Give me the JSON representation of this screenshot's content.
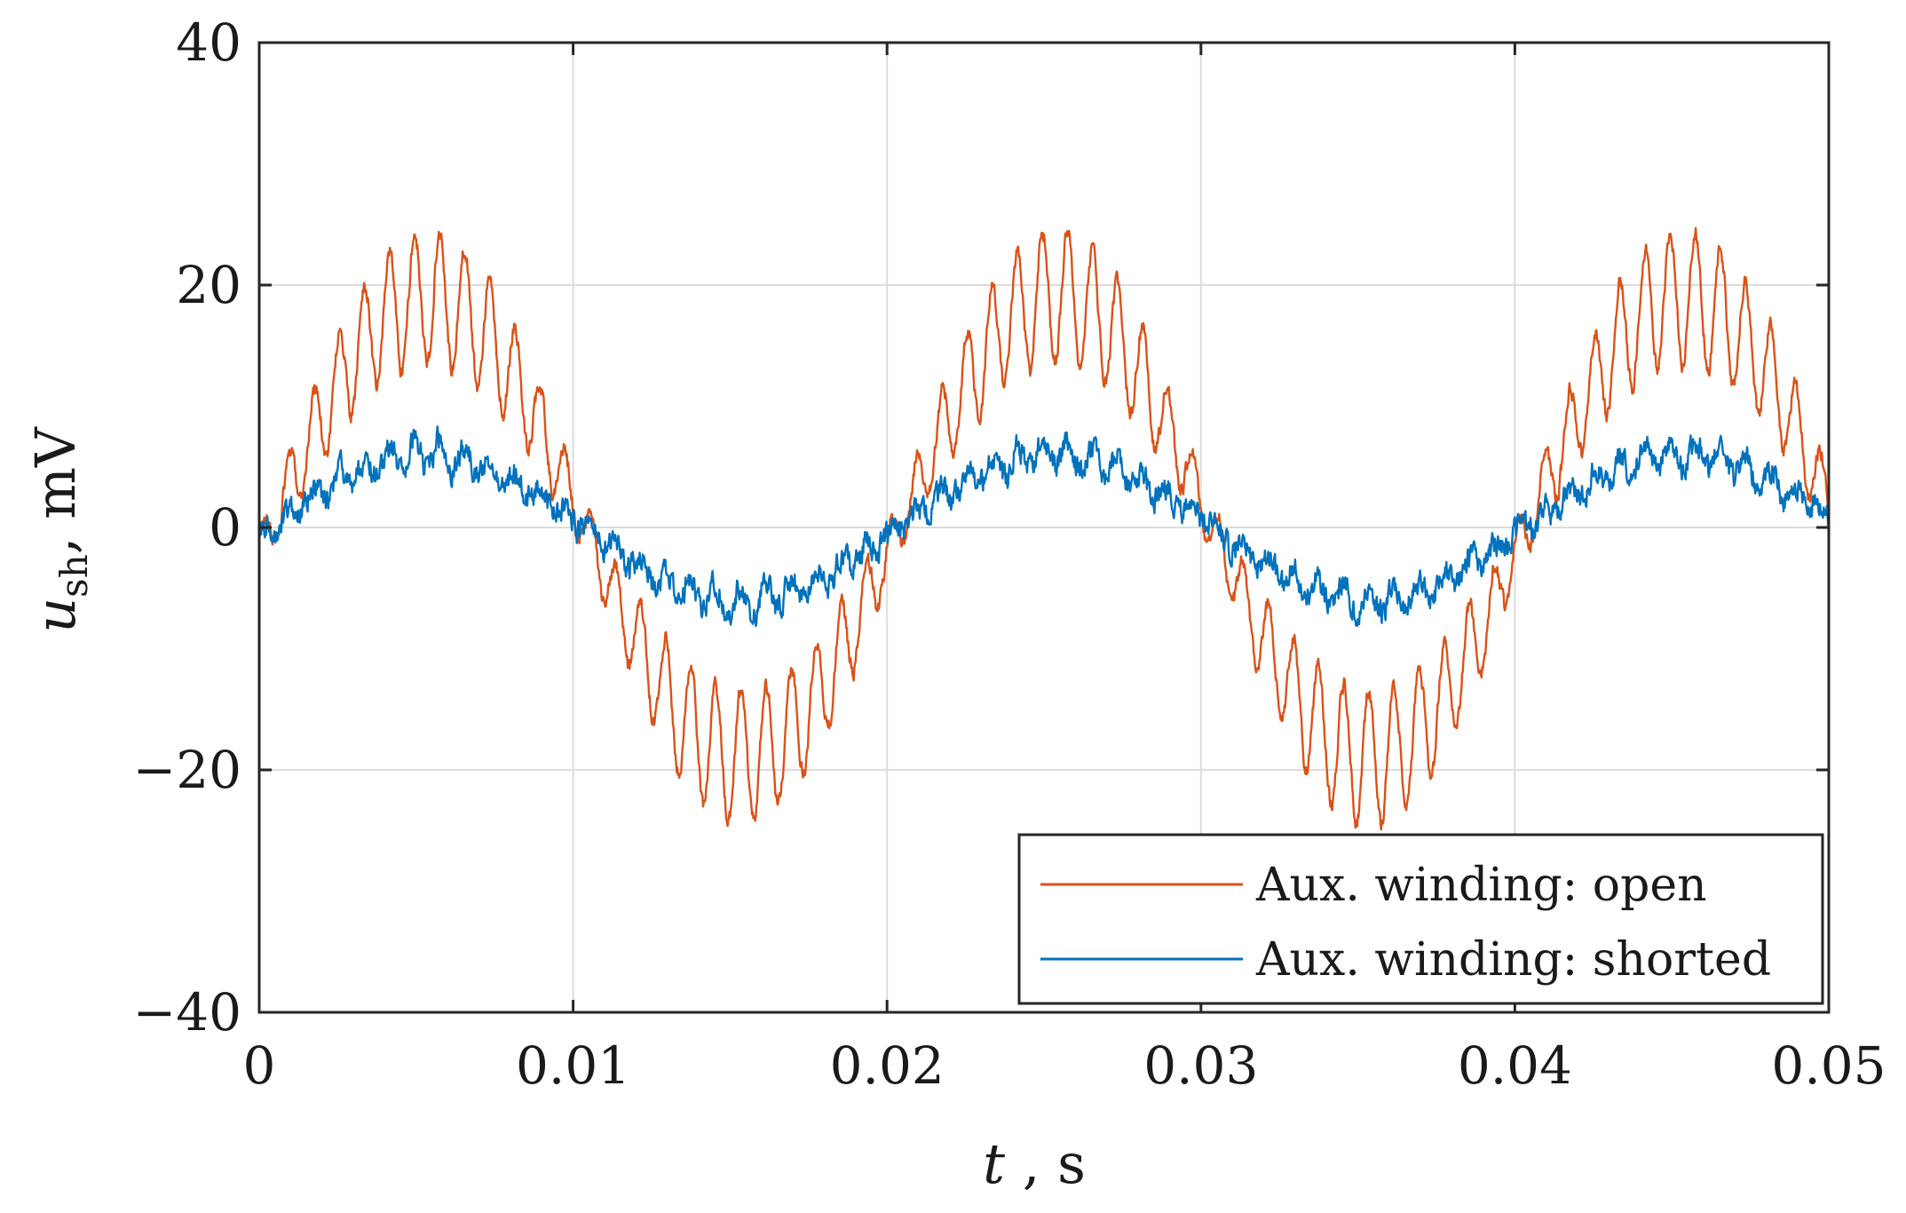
{
  "chart_data": {
    "type": "line",
    "title": "",
    "xlabel": {
      "var": "t",
      "unit": " , s"
    },
    "ylabel": {
      "var": "u",
      "sub": "sh",
      "unit": ", mV"
    },
    "xlim": [
      0,
      0.05
    ],
    "ylim": [
      -40,
      40
    ],
    "x_ticks": [
      0,
      0.01,
      0.02,
      0.03,
      0.04,
      0.05
    ],
    "x_tick_labels": [
      "0",
      "0.01",
      "0.02",
      "0.03",
      "0.04",
      "0.05"
    ],
    "y_ticks": [
      -40,
      -20,
      0,
      20,
      40
    ],
    "y_tick_labels": [
      "−40",
      "−20",
      "0",
      "20",
      "40"
    ],
    "grid": true,
    "legend_position": "bottom-right",
    "frequency_hz": 50,
    "sample_step_s": 2e-05,
    "series": [
      {
        "name": "Aux. winding: open",
        "color": "#D95319",
        "fundamental_amplitude_mv": 19,
        "ripple_amplitude_mv": 5.5,
        "ripple_frequency_hz": 1250,
        "noise_mv": 0.8,
        "approx_peak_mv": 28,
        "approx_trough_mv": -27
      },
      {
        "name": "Aux. winding: shorted",
        "color": "#0072BD",
        "fundamental_amplitude_mv": 6,
        "ripple_amplitude_mv": 1.2,
        "ripple_frequency_hz": 1250,
        "noise_mv": 1.2,
        "approx_peak_mv": 10,
        "approx_trough_mv": -8
      }
    ]
  }
}
